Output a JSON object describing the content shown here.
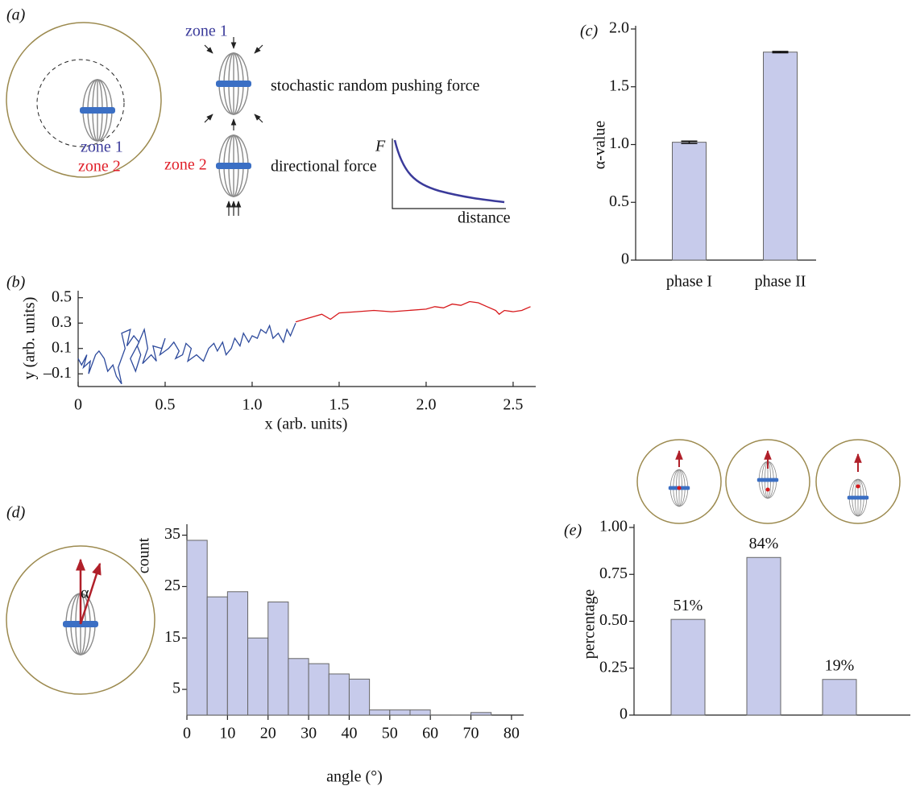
{
  "panel_a": {
    "label": "(a)",
    "zone_1_inner": "zone 1",
    "zone_2_inner": "zone 2",
    "zone_1": "zone 1",
    "pushing": "stochastic random pushing force",
    "zone_2": "zone 2",
    "directional": "directional force",
    "F": "F",
    "distance": "distance"
  },
  "chart_data": [
    {
      "type": "line",
      "label": "(b)",
      "xlabel": "x (arb. units)",
      "ylabel": "y (arb. units)",
      "xlim": [
        0,
        2.63
      ],
      "ylim": [
        -0.2,
        0.53
      ],
      "xticks": [
        0,
        0.5,
        {
          "value": 1.0,
          "label": "1.0"
        },
        1.5,
        {
          "value": 2.0,
          "label": "2.0"
        },
        2.5
      ],
      "yticks": [
        {
          "value": -0.1,
          "label": "–0.1"
        },
        0.1,
        0.3,
        0.5
      ],
      "series": [
        {
          "name": "zone 1",
          "color": "#2d4a9c",
          "x": [
            0,
            0.02,
            0.05,
            0.03,
            0.07,
            0.06,
            0.1,
            0.12,
            0.15,
            0.17,
            0.2,
            0.22,
            0.25,
            0.23,
            0.27,
            0.25,
            0.3,
            0.28,
            0.32,
            0.35,
            0.3,
            0.33,
            0.36,
            0.34,
            0.38,
            0.4,
            0.37,
            0.42,
            0.45,
            0.43,
            0.48,
            0.5,
            0.47,
            0.52,
            0.55,
            0.58,
            0.56,
            0.6,
            0.62,
            0.65,
            0.63,
            0.68,
            0.72,
            0.75,
            0.78,
            0.8,
            0.83,
            0.85,
            0.88,
            0.9,
            0.93,
            0.95,
            0.98,
            1.0,
            1.03,
            1.05,
            1.08,
            1.1,
            1.12,
            1.15,
            1.18,
            1.2,
            1.22,
            1.25
          ],
          "values": [
            0.02,
            -0.03,
            0.05,
            -0.05,
            0.0,
            -0.1,
            0.05,
            0.08,
            0.02,
            -0.08,
            -0.03,
            -0.12,
            -0.18,
            -0.05,
            0.1,
            0.22,
            0.25,
            0.12,
            0.2,
            0.15,
            0.02,
            -0.08,
            0.05,
            0.12,
            0.25,
            0.1,
            -0.02,
            0.05,
            0.0,
            0.12,
            0.1,
            0.18,
            0.05,
            0.1,
            0.15,
            0.08,
            0.02,
            0.05,
            0.14,
            0.1,
            0.0,
            0.05,
            0.0,
            0.1,
            0.14,
            0.08,
            0.15,
            0.05,
            0.1,
            0.18,
            0.12,
            0.22,
            0.15,
            0.2,
            0.18,
            0.25,
            0.22,
            0.28,
            0.18,
            0.22,
            0.15,
            0.25,
            0.2,
            0.3
          ]
        },
        {
          "name": "zone 2",
          "color": "#d7191c",
          "x": [
            1.25,
            1.3,
            1.35,
            1.4,
            1.45,
            1.5,
            1.6,
            1.7,
            1.8,
            1.9,
            2.0,
            2.05,
            2.1,
            2.15,
            2.2,
            2.25,
            2.3,
            2.35,
            2.4,
            2.42,
            2.45,
            2.5,
            2.55,
            2.6
          ],
          "values": [
            0.31,
            0.33,
            0.35,
            0.37,
            0.33,
            0.38,
            0.39,
            0.4,
            0.39,
            0.4,
            0.41,
            0.43,
            0.42,
            0.45,
            0.44,
            0.47,
            0.46,
            0.43,
            0.4,
            0.37,
            0.4,
            0.39,
            0.4,
            0.43
          ]
        }
      ]
    },
    {
      "type": "bar",
      "label": "(c)",
      "ylabel": "α-value",
      "categories": [
        "phase I",
        "phase II"
      ],
      "values": [
        1.02,
        1.8
      ],
      "errors": [
        0.01,
        0.006
      ],
      "color": "#c7cbeb",
      "ylim": [
        0,
        2.0
      ],
      "yticks": [
        0,
        0.5,
        {
          "value": 1.0,
          "label": "1.0"
        },
        1.5,
        {
          "value": 2.0,
          "label": "2.0"
        }
      ]
    },
    {
      "type": "histogram",
      "label": "(d)",
      "annotation": "α",
      "xlabel": "angle (°)",
      "ylabel": "count",
      "color": "#c7cbeb",
      "bins": [
        0,
        5,
        10,
        15,
        20,
        25,
        30,
        35,
        40,
        45,
        50,
        55,
        60,
        65,
        70,
        75
      ],
      "counts": [
        34,
        23,
        24,
        15,
        22,
        11,
        10,
        8,
        7,
        1,
        1,
        1,
        0,
        0,
        0.5
      ],
      "xlim": [
        0,
        83
      ],
      "ylim": [
        0,
        36.5
      ],
      "xticks": [
        0,
        10,
        20,
        30,
        40,
        50,
        60,
        70,
        80
      ],
      "yticks": [
        5,
        15,
        25,
        35
      ]
    },
    {
      "type": "bar",
      "label": "(e)",
      "ylabel": "percentage",
      "categories": [
        null,
        null,
        null
      ],
      "values": [
        0.51,
        0.84,
        0.19
      ],
      "value_labels": [
        "51%",
        "84%",
        "19%"
      ],
      "color": "#c7cbeb",
      "ylim": [
        0,
        1.0
      ],
      "yticks": [
        0,
        0.25,
        {
          "value": 0.5,
          "label": "0.50"
        },
        0.75,
        {
          "value": 1.0,
          "label": "1.00"
        }
      ]
    }
  ]
}
